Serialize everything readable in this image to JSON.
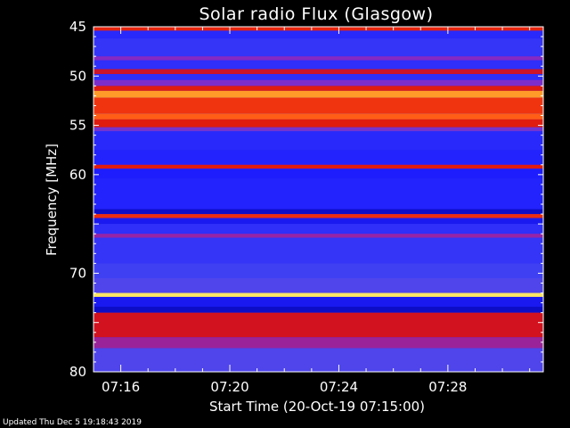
{
  "chart_data": {
    "type": "heatmap",
    "title": "Solar radio Flux (Glasgow)",
    "xlabel": "Start Time (20-Oct-19 07:15:00)",
    "ylabel": "Frequency [MHz]",
    "ylim": [
      45,
      80
    ],
    "y_inverted": true,
    "xlim_minutes_after_0715": [
      0,
      16.5
    ],
    "x_ticks": [
      {
        "label": "07:16",
        "minute": 1
      },
      {
        "label": "07:20",
        "minute": 5
      },
      {
        "label": "07:24",
        "minute": 9
      },
      {
        "label": "07:28",
        "minute": 13
      }
    ],
    "y_ticks": [
      45,
      50,
      55,
      60,
      65,
      70,
      75,
      80
    ],
    "y_tick_labels_shown": [
      "45",
      "50",
      "55",
      "60",
      "",
      "70",
      "",
      "80"
    ],
    "colormap": [
      "#0000a0",
      "#1e1eff",
      "#4848f0",
      "#8a28c0",
      "#d81010",
      "#ff4a10",
      "#ffb830",
      "#ffff80"
    ],
    "intensity_bands_mhz": [
      {
        "from": 45.0,
        "to": 45.4,
        "level": 0.62
      },
      {
        "from": 45.4,
        "to": 46.2,
        "level": 0.18
      },
      {
        "from": 46.2,
        "to": 48.0,
        "level": 0.22
      },
      {
        "from": 48.0,
        "to": 48.4,
        "level": 0.42
      },
      {
        "from": 48.4,
        "to": 49.3,
        "level": 0.2
      },
      {
        "from": 49.3,
        "to": 49.8,
        "level": 0.55
      },
      {
        "from": 49.8,
        "to": 50.4,
        "level": 0.2
      },
      {
        "from": 50.4,
        "to": 51.0,
        "level": 0.4
      },
      {
        "from": 51.0,
        "to": 51.5,
        "level": 0.6
      },
      {
        "from": 51.5,
        "to": 52.2,
        "level": 0.82
      },
      {
        "from": 52.2,
        "to": 53.8,
        "level": 0.66
      },
      {
        "from": 53.8,
        "to": 54.4,
        "level": 0.74
      },
      {
        "from": 54.4,
        "to": 55.2,
        "level": 0.6
      },
      {
        "from": 55.2,
        "to": 55.6,
        "level": 0.38
      },
      {
        "from": 55.6,
        "to": 57.5,
        "level": 0.18
      },
      {
        "from": 57.5,
        "to": 59.0,
        "level": 0.16
      },
      {
        "from": 59.0,
        "to": 59.4,
        "level": 0.6
      },
      {
        "from": 59.4,
        "to": 60.4,
        "level": 0.14
      },
      {
        "from": 60.4,
        "to": 63.5,
        "level": 0.16
      },
      {
        "from": 63.5,
        "to": 64.0,
        "level": 0.06
      },
      {
        "from": 64.0,
        "to": 64.4,
        "level": 0.64
      },
      {
        "from": 64.4,
        "to": 65.0,
        "level": 0.12
      },
      {
        "from": 65.0,
        "to": 66.0,
        "level": 0.2
      },
      {
        "from": 66.0,
        "to": 66.4,
        "level": 0.45
      },
      {
        "from": 66.4,
        "to": 69.0,
        "level": 0.22
      },
      {
        "from": 69.0,
        "to": 70.5,
        "level": 0.26
      },
      {
        "from": 70.5,
        "to": 72.0,
        "level": 0.3
      },
      {
        "from": 72.0,
        "to": 72.4,
        "level": 0.95
      },
      {
        "from": 72.4,
        "to": 73.4,
        "level": 0.12
      },
      {
        "from": 73.4,
        "to": 74.0,
        "level": 0.06
      },
      {
        "from": 74.0,
        "to": 76.5,
        "level": 0.56
      },
      {
        "from": 76.5,
        "to": 77.6,
        "level": 0.46
      },
      {
        "from": 77.6,
        "to": 80.0,
        "level": 0.3
      }
    ]
  },
  "footer": "Updated Thu Dec  5 19:18:43 2019"
}
